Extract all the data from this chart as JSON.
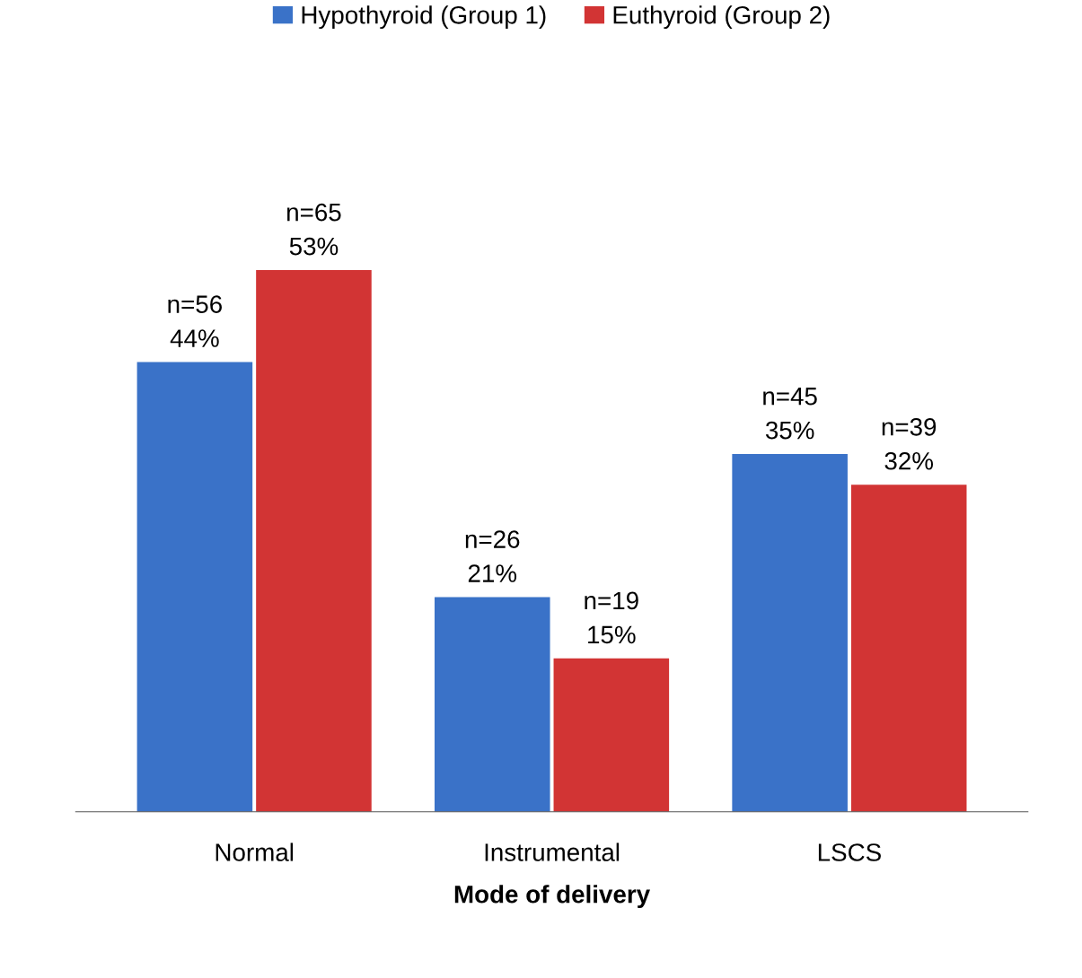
{
  "chart_data": {
    "type": "bar",
    "xlabel": "Mode of delivery",
    "categories": [
      "Normal",
      "Instrumental",
      "LSCS"
    ],
    "series": [
      {
        "name": "Hypothyroid (Group 1)",
        "color": "#3a72c8",
        "values": [
          44,
          21,
          35
        ],
        "value_labels": [
          "n=56\n44%",
          "n=26\n21%",
          "n=45\n35%"
        ]
      },
      {
        "name": "Euthyroid (Group 2)",
        "color": "#d23434",
        "values": [
          53,
          15,
          32
        ],
        "value_labels": [
          "n=65\n53%",
          "n=19\n15%",
          "n=39\n32%"
        ]
      }
    ],
    "legend": "top",
    "tick_labels": "x",
    "grid": false
  }
}
